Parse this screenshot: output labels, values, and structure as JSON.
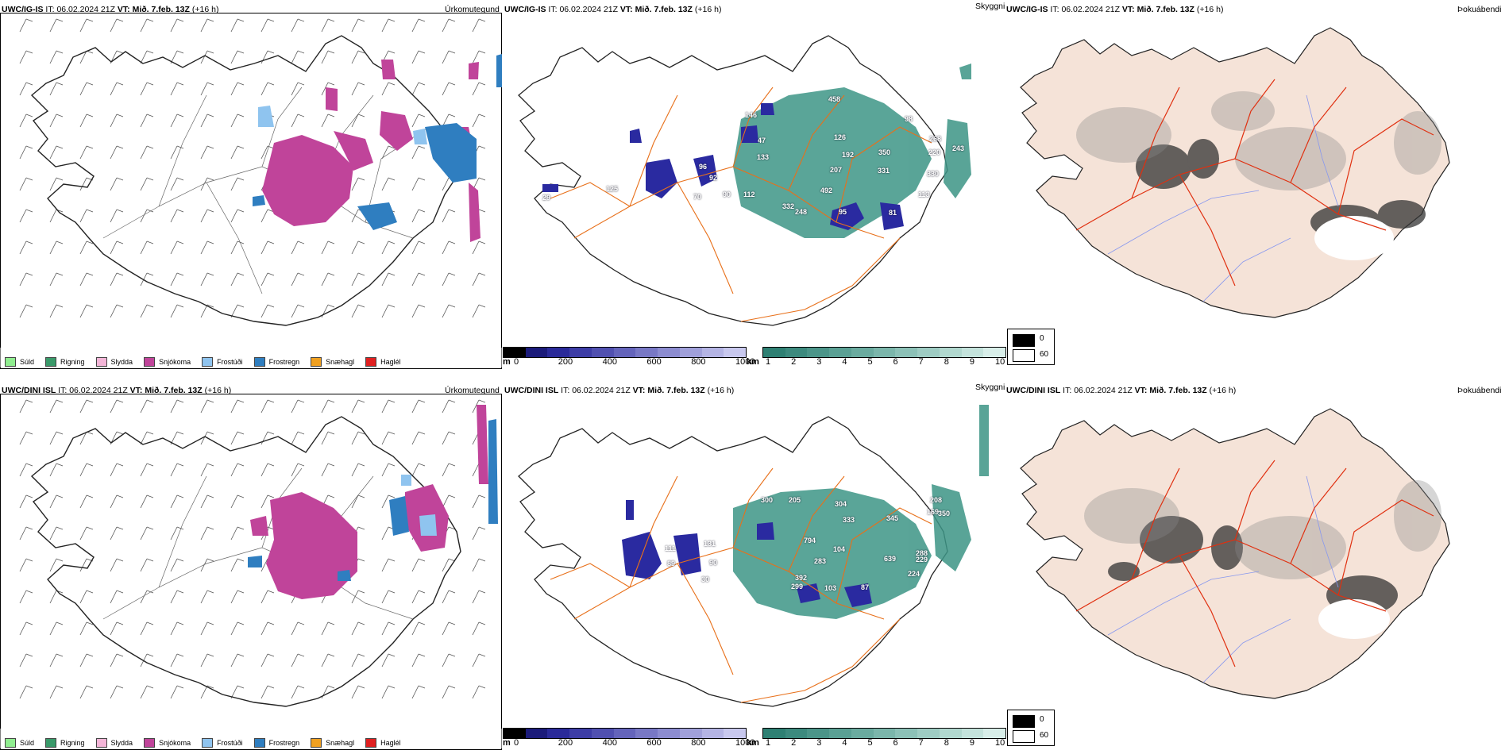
{
  "rows": [
    {
      "model_header": "UWC/IG-IS",
      "it_label": "IT:",
      "it_value": "06.02.2024 21Z",
      "vt_label": "VT:",
      "vt_value": "Mið. 7.feb. 13Z",
      "lead": "(+16 h)",
      "panel_titles": [
        "Úrkomutegund",
        "Skyggni",
        "Þokuábendi"
      ],
      "height_labels": [
        "458",
        "146",
        "98",
        "126",
        "268",
        "220",
        "243",
        "47",
        "133",
        "192",
        "207",
        "350",
        "331",
        "96",
        "70",
        "90",
        "112",
        "492",
        "332",
        "248",
        "95",
        "81",
        "113",
        "125",
        "29",
        "92",
        "330"
      ]
    },
    {
      "model_header": "UWC/DINI ISL",
      "it_label": "IT:",
      "it_value": "06.02.2024 21Z",
      "vt_label": "VT:",
      "vt_value": "Mið. 7.feb. 13Z",
      "lead": "(+16 h)",
      "panel_titles": [
        "Úrkomutegund",
        "Skyggni",
        "Þokuábendi"
      ],
      "height_labels": [
        "300",
        "205",
        "304",
        "333",
        "345",
        "208",
        "169",
        "350",
        "111",
        "89",
        "131",
        "90",
        "794",
        "104",
        "639",
        "288",
        "283",
        "392",
        "299",
        "103",
        "87",
        "224",
        "229",
        "30"
      ]
    }
  ],
  "precip_legend": [
    {
      "label": "Súld",
      "color": "#90ee90"
    },
    {
      "label": "Rigning",
      "color": "#3a9a6a"
    },
    {
      "label": "Slydda",
      "color": "#f4b6d8"
    },
    {
      "label": "Snjókoma",
      "color": "#c0449a"
    },
    {
      "label": "Frostúði",
      "color": "#8fc4ef"
    },
    {
      "label": "Frostregn",
      "color": "#2f7ec0"
    },
    {
      "label": "Snæhagl",
      "color": "#f0a020"
    },
    {
      "label": "Haglél",
      "color": "#e02020"
    }
  ],
  "cloudbase_bar": {
    "unit": "m",
    "ticks": [
      "0",
      "200",
      "400",
      "600",
      "800",
      "1000"
    ],
    "colors": [
      "#000000",
      "#1b1b7a",
      "#2a2a99",
      "#3d3da6",
      "#5050b0",
      "#6464bb",
      "#7878c5",
      "#8c8cd0",
      "#a0a0da",
      "#b4b4e4",
      "#c8c8ee"
    ]
  },
  "visibility_bar": {
    "unit": "km",
    "ticks": [
      "1",
      "2",
      "3",
      "4",
      "5",
      "6",
      "7",
      "8",
      "9",
      "10"
    ],
    "colors": [
      "#2e8073",
      "#3c8a7e",
      "#4b9589",
      "#5aa094",
      "#6aab9f",
      "#7bb6ab",
      "#8cc1b7",
      "#9eccc3",
      "#b1d8cf",
      "#c4e3dc",
      "#d8eee9"
    ]
  },
  "fog_legend": {
    "black_label": "0",
    "white_label": "60"
  },
  "colors": {
    "snow": "#c0449a",
    "freezing_rain": "#2f7ec0",
    "freezing_drizzle": "#8fc4ef",
    "low_vis": "#3d9586",
    "cloud_base": "#2a2aa0",
    "roads": "#e8701a",
    "land_fog": "#f5e3d8",
    "rivers": "#8898ee",
    "fog_roads": "#e03010"
  }
}
